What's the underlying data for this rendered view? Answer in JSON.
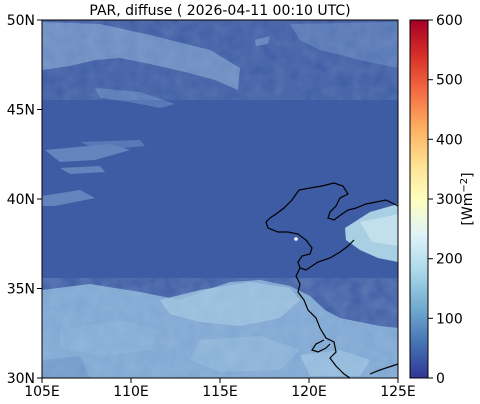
{
  "title": "PAR, diffuse ( 2026-04-11 00:10 UTC)",
  "map": {
    "lon_range": [
      105,
      125
    ],
    "lat_range": [
      30,
      50
    ],
    "x_ticks": [
      "105E",
      "110E",
      "115E",
      "120E",
      "125E"
    ],
    "y_ticks": [
      "30N",
      "35N",
      "40N",
      "45N",
      "50N"
    ],
    "background_value_color": "#3b5aa8"
  },
  "colorbar": {
    "label": "[Wm$^{-2}$]",
    "label_text": "[Wm",
    "label_sup": "−2",
    "label_close": "]",
    "range": [
      0,
      600
    ],
    "ticks": [
      "0",
      "100",
      "200",
      "300",
      "400",
      "500",
      "600"
    ],
    "colormap": "RdYlBu_r"
  }
}
